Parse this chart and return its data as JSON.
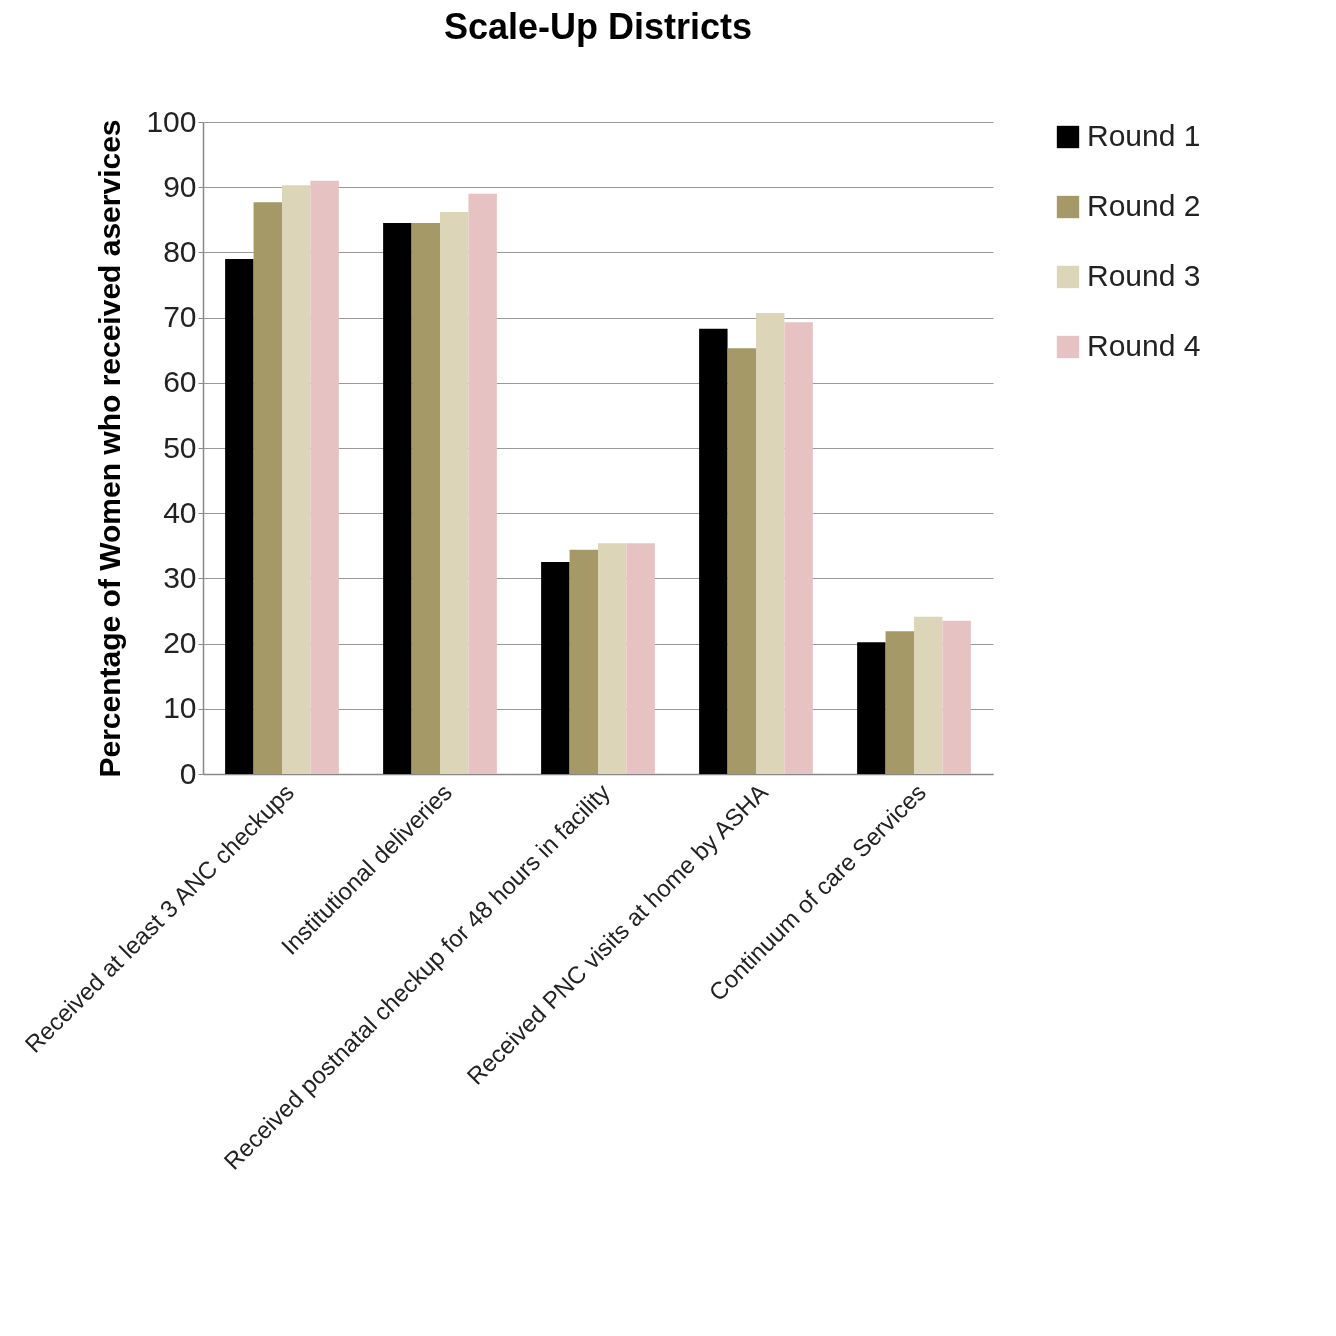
{
  "chart_data": {
    "type": "bar",
    "title": "Scale-Up Districts",
    "ylabel": "Percentage of Women who received aservices",
    "categories": [
      "Received at least 3 ANC checkups",
      "Institutional deliveries",
      "Received postnatal checkup for 48 hours in facility",
      "Received PNC visits at home by ASHA",
      "Continuum of care Services"
    ],
    "series": [
      {
        "name": "Round 1",
        "color": "#000000",
        "values": [
          79,
          84.5,
          32.5,
          68.3,
          20.2
        ]
      },
      {
        "name": "Round 2",
        "color": "#a59a67",
        "values": [
          87.7,
          84.5,
          34.4,
          65.3,
          21.9
        ]
      },
      {
        "name": "Round 3",
        "color": "#dcd5b8",
        "values": [
          90.3,
          86.2,
          35.4,
          70.7,
          24.1
        ]
      },
      {
        "name": "Round 4",
        "color": "#e6c2c2",
        "values": [
          91,
          89,
          35.4,
          69.3,
          23.5
        ]
      }
    ],
    "ylim": [
      0,
      100
    ],
    "yticks": [
      0,
      10,
      20,
      30,
      40,
      50,
      60,
      70,
      80,
      90,
      100
    ],
    "grid": "y",
    "legend": "right"
  }
}
